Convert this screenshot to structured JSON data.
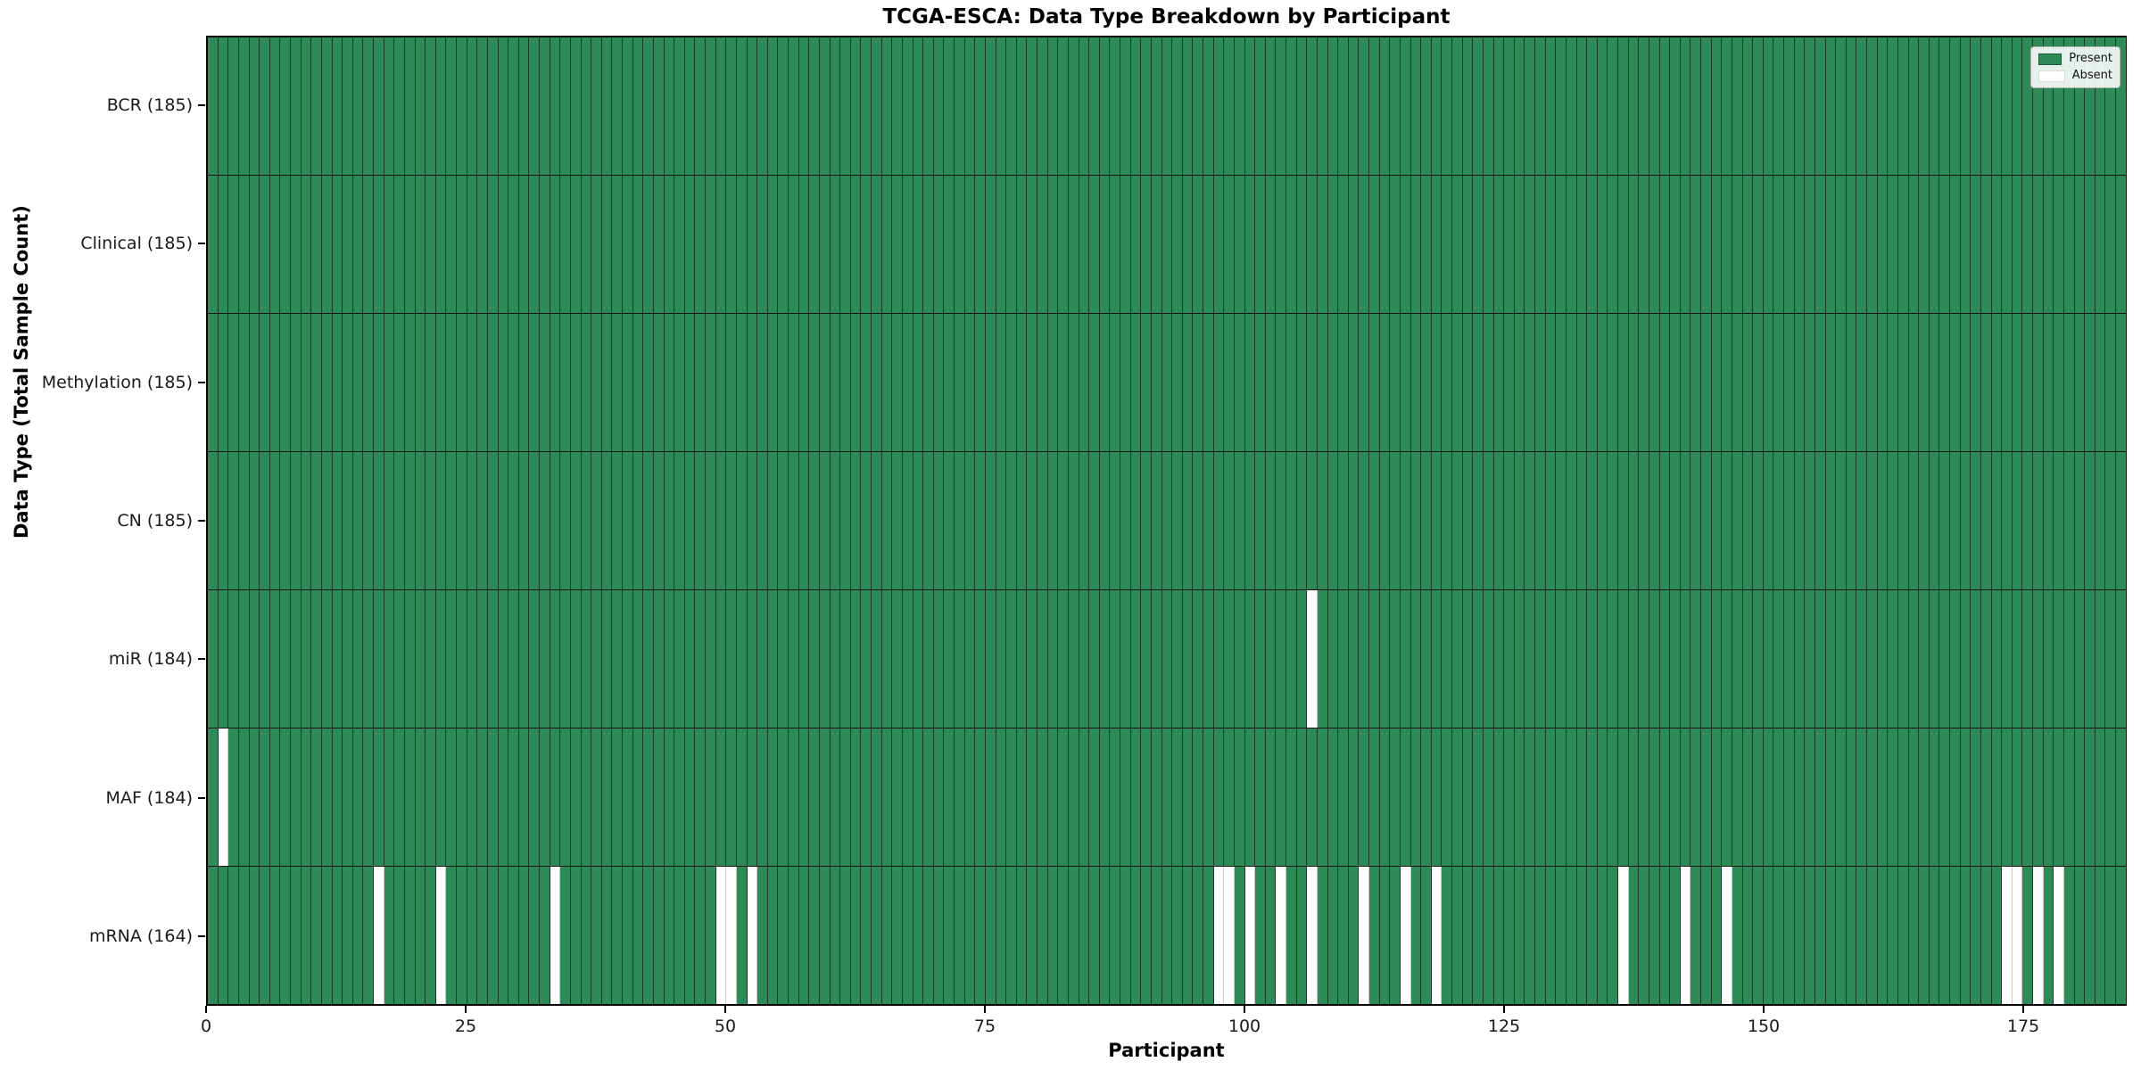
{
  "chart_data": {
    "type": "heatmap",
    "title": "TCGA-ESCA: Data Type Breakdown by Participant",
    "xlabel": "Participant",
    "ylabel": "Data Type (Total Sample Count)",
    "n_participants": 185,
    "x_axis_range": [
      0,
      185
    ],
    "x_ticks": [
      0,
      25,
      50,
      75,
      100,
      125,
      150,
      175
    ],
    "x_tick_labels": [
      "0",
      "25",
      "50",
      "75",
      "100",
      "125",
      "150",
      "175"
    ],
    "grid": false,
    "legend_position": "upper right",
    "rows": [
      {
        "label": "BCR (185)",
        "data_type": "BCR",
        "present_count": 185,
        "absent_participants": []
      },
      {
        "label": "Clinical (185)",
        "data_type": "Clinical",
        "present_count": 185,
        "absent_participants": []
      },
      {
        "label": "Methylation (185)",
        "data_type": "Methylation",
        "present_count": 185,
        "absent_participants": []
      },
      {
        "label": "CN (185)",
        "data_type": "CN",
        "present_count": 185,
        "absent_participants": []
      },
      {
        "label": "miR (184)",
        "data_type": "miR",
        "present_count": 184,
        "absent_participants": [
          106
        ]
      },
      {
        "label": "MAF (184)",
        "data_type": "MAF",
        "present_count": 184,
        "absent_participants": [
          1
        ]
      },
      {
        "label": "mRNA (164)",
        "data_type": "mRNA",
        "present_count": 164,
        "absent_participants": [
          16,
          22,
          33,
          49,
          50,
          52,
          97,
          98,
          100,
          103,
          106,
          111,
          115,
          118,
          136,
          142,
          146,
          173,
          174,
          176,
          178
        ]
      }
    ],
    "legend": [
      {
        "label": "Present",
        "value": "present"
      },
      {
        "label": "Absent",
        "value": "absent"
      }
    ],
    "colors": {
      "present": "#2e8b57",
      "absent": "#ffffff",
      "bar_edge": "rgba(0,0,0,0.55)",
      "absent_edge": "#c9c9c9",
      "row_divider": "#141414"
    }
  }
}
